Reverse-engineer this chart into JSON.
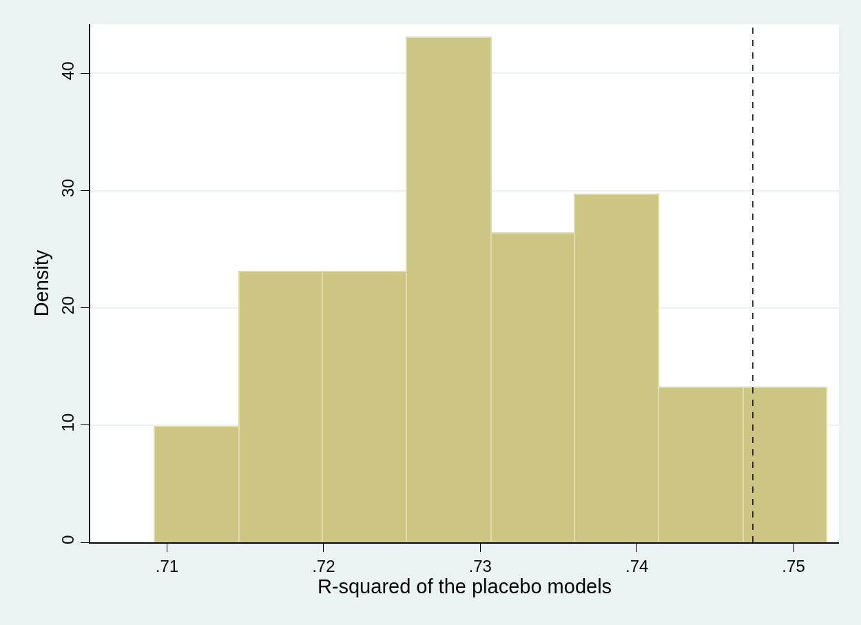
{
  "chart_data": {
    "type": "histogram",
    "xlabel": "R-squared of the placebo models",
    "ylabel": "Density",
    "bins": [
      0.7092,
      0.7146,
      0.7199,
      0.7253,
      0.7307,
      0.736,
      0.7414,
      0.7468,
      0.7521
    ],
    "values": [
      9.9,
      23.1,
      23.1,
      43.1,
      26.4,
      29.7,
      13.2,
      13.2
    ],
    "color": "#cdc584",
    "xlim": [
      0.7051,
      0.7529
    ],
    "xticks": [
      {
        "value": 0.71,
        "label": ".71"
      },
      {
        "value": 0.72,
        "label": ".72"
      },
      {
        "value": 0.73,
        "label": ".73"
      },
      {
        "value": 0.74,
        "label": ".74"
      },
      {
        "value": 0.75,
        "label": ".75"
      }
    ],
    "ylim": [
      0,
      44.2
    ],
    "yticks": [
      0,
      10,
      20,
      30,
      40
    ],
    "grid": "y",
    "ref_lines": [
      {
        "axis": "x",
        "value": 0.7474,
        "color": "#000000",
        "line_style": "dashed"
      }
    ]
  }
}
